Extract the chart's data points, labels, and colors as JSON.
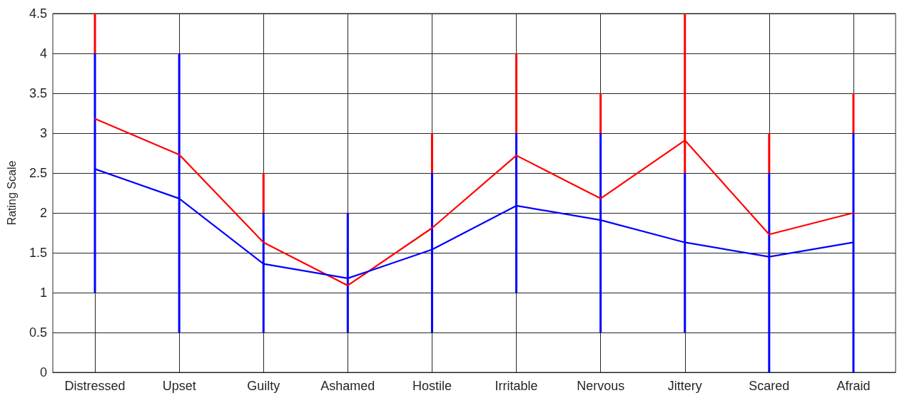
{
  "chart_data": {
    "type": "line",
    "ylabel": "Rating Scale",
    "categories": [
      "Distressed",
      "Upset",
      "Guilty",
      "Ashamed",
      "Hostile",
      "Irritable",
      "Nervous",
      "Jittery",
      "Scared",
      "Afraid"
    ],
    "series": [
      {
        "color": "#ff0000",
        "values": [
          3.18,
          2.73,
          1.63,
          1.09,
          1.81,
          2.72,
          2.18,
          2.91,
          1.73,
          2.0
        ],
        "errors": [
          [
            4,
            4.5
          ],
          null,
          [
            2,
            2.5
          ],
          null,
          [
            2.5,
            3
          ],
          [
            3,
            4
          ],
          [
            3,
            3.5
          ],
          [
            2.5,
            4.5
          ],
          [
            2.5,
            3
          ],
          [
            3,
            3.5
          ]
        ]
      },
      {
        "color": "#0000ff",
        "values": [
          2.55,
          2.18,
          1.36,
          1.18,
          1.54,
          2.09,
          1.91,
          1.63,
          1.45,
          1.63
        ],
        "errors": [
          [
            1,
            4
          ],
          [
            0.5,
            4
          ],
          [
            0.5,
            2
          ],
          [
            0.5,
            2
          ],
          [
            0.5,
            2.5
          ],
          [
            1,
            3
          ],
          [
            0.5,
            3
          ],
          [
            0.5,
            2.5
          ],
          [
            0,
            2.5
          ],
          [
            0,
            3
          ]
        ]
      }
    ],
    "ylim": [
      0,
      4.5
    ],
    "yticks": [
      0,
      0.5,
      1,
      1.5,
      2,
      2.5,
      3,
      3.5,
      4,
      4.5
    ],
    "grid": true,
    "marker": "none",
    "line_style": "solid"
  }
}
